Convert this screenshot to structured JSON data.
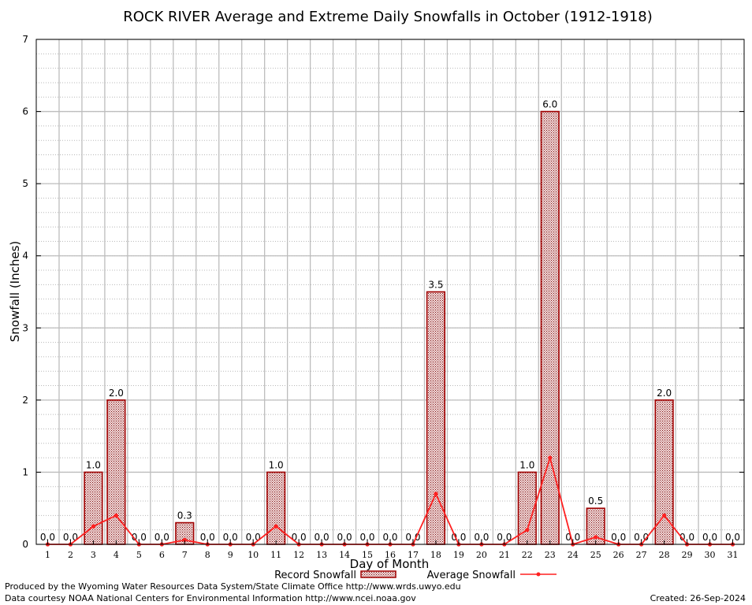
{
  "chart_data": {
    "type": "bar",
    "title": "ROCK RIVER Average and Extreme Daily Snowfalls in October (1912-1918)",
    "xlabel": "Day of Month",
    "ylabel": "Snowfall (Inches)",
    "ylim": [
      0,
      7
    ],
    "yticks": [
      "0",
      "1",
      "2",
      "3",
      "4",
      "5",
      "6",
      "7"
    ],
    "grid": true,
    "legend_position": "bottom",
    "categories": [
      "1",
      "2",
      "3",
      "4",
      "5",
      "6",
      "7",
      "8",
      "9",
      "10",
      "11",
      "12",
      "13",
      "14",
      "15",
      "16",
      "17",
      "18",
      "19",
      "20",
      "21",
      "22",
      "23",
      "24",
      "25",
      "26",
      "27",
      "28",
      "29",
      "30",
      "31"
    ],
    "series": [
      {
        "name": "Record Snowfall",
        "kind": "bar",
        "color": "#a00000",
        "values": [
          0.0,
          0.0,
          1.0,
          2.0,
          0.0,
          0.0,
          0.3,
          0.0,
          0.0,
          0.0,
          1.0,
          0.0,
          0.0,
          0.0,
          0.0,
          0.0,
          0.0,
          3.5,
          0.0,
          0.0,
          0.0,
          1.0,
          6.0,
          0.0,
          0.5,
          0.0,
          0.0,
          2.0,
          0.0,
          0.0,
          0.0
        ],
        "labels": [
          "0.0",
          "0.0",
          "1.0",
          "2.0",
          "0.0",
          "0.0",
          "0.3",
          "0.0",
          "0.0",
          "0.0",
          "1.0",
          "0.0",
          "0.0",
          "0.0",
          "0.0",
          "0.0",
          "0.0",
          "3.5",
          "0.0",
          "0.0",
          "0.0",
          "1.0",
          "6.0",
          "0.0",
          "0.5",
          "0.0",
          "0.0",
          "2.0",
          "0.0",
          "0.0",
          "0.0"
        ]
      },
      {
        "name": "Average Snowfall",
        "kind": "line",
        "color": "#ff2020",
        "values": [
          0,
          0,
          0.25,
          0.4,
          0,
          0,
          0.06,
          0,
          0,
          0,
          0.25,
          0,
          0,
          0,
          0,
          0,
          0,
          0.7,
          0,
          0,
          0,
          0.2,
          1.2,
          0,
          0.1,
          0,
          0,
          0.4,
          0,
          0,
          0
        ]
      }
    ]
  },
  "footer": {
    "credit_line1": "Produced by the Wyoming Water Resources Data System/State Climate Office http://www.wrds.uwyo.edu",
    "credit_line2": "Data courtesy NOAA National Centers for Environmental Information http://www.ncei.noaa.gov",
    "created": "Created: 26-Sep-2024"
  }
}
